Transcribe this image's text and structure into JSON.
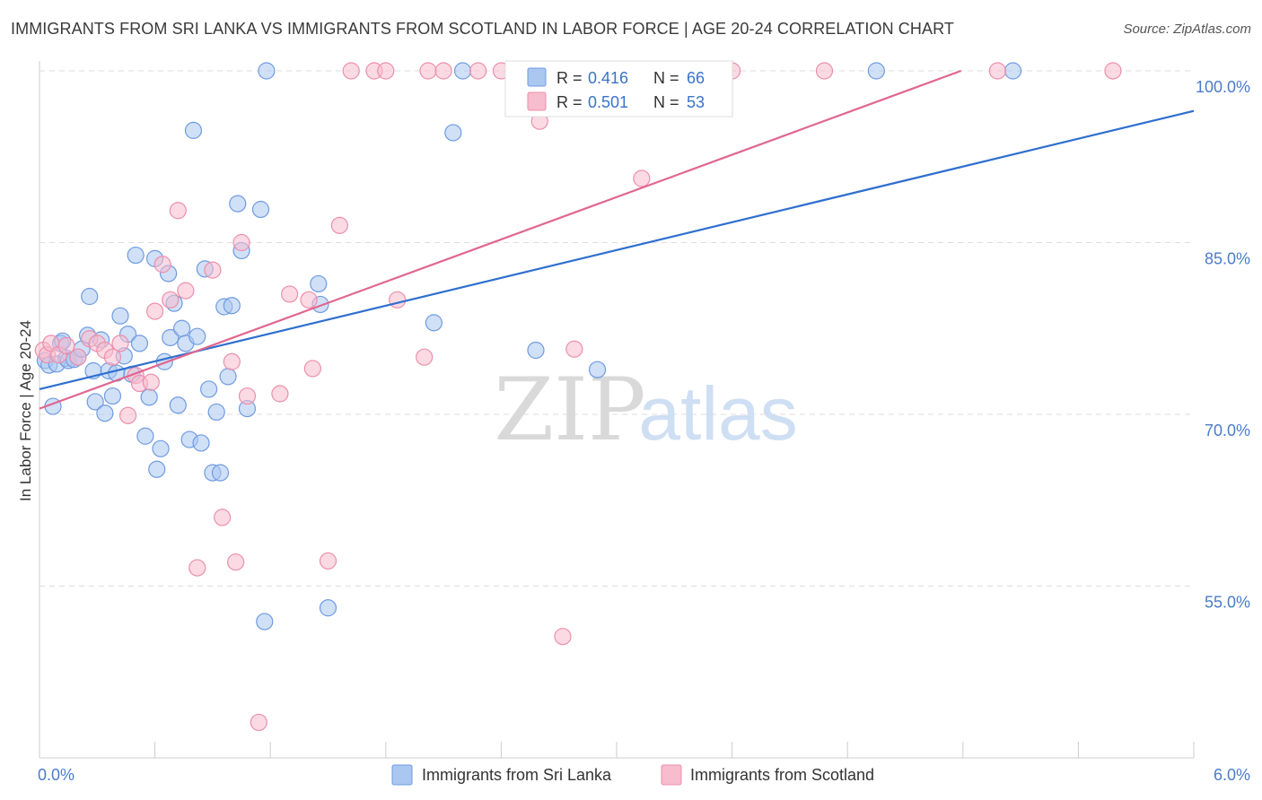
{
  "title": "IMMIGRANTS FROM SRI LANKA VS IMMIGRANTS FROM SCOTLAND IN LABOR FORCE | AGE 20-24 CORRELATION CHART",
  "source": "Source: ZipAtlas.com",
  "watermark": {
    "zip": "ZIP",
    "atlas": "atlas"
  },
  "colors": {
    "blue_fill": "#aac7f0",
    "blue_stroke": "#6f9be0",
    "blue_line": "#2f6fcf",
    "pink_fill": "#f7bccd",
    "pink_stroke": "#eb8fac",
    "pink_line": "#e0668f",
    "tick_color": "#4a7cc9",
    "grid": "#dddddd"
  },
  "chart_data": {
    "type": "scatter",
    "title": "IMMIGRANTS FROM SRI LANKA VS IMMIGRANTS FROM SCOTLAND IN LABOR FORCE | AGE 20-24 CORRELATION CHART",
    "xlabel": "",
    "ylabel": "In Labor Force | Age 20-24",
    "xlim": [
      0,
      6
    ],
    "ylim": [
      40,
      100
    ],
    "x_tick_labels": {
      "left": "0.0%",
      "right": "6.0%"
    },
    "y_ticks": [
      {
        "value": 100,
        "label": "100.0%"
      },
      {
        "value": 85,
        "label": "85.0%"
      },
      {
        "value": 70,
        "label": "70.0%"
      },
      {
        "value": 55,
        "label": "55.0%"
      }
    ],
    "grid": true,
    "legend_position": "top-center",
    "series": [
      {
        "name": "Immigrants from Sri Lanka",
        "color": "#aac7f0",
        "R": "0.416",
        "N": "66",
        "trend": {
          "x": [
            0.0,
            6.0
          ],
          "y": [
            72.2,
            96.5
          ]
        },
        "points": [
          [
            0.03,
            74.7
          ],
          [
            0.05,
            74.3
          ],
          [
            0.07,
            70.7
          ],
          [
            0.09,
            74.4
          ],
          [
            0.11,
            76.2
          ],
          [
            0.12,
            76.4
          ],
          [
            0.14,
            74.9
          ],
          [
            0.15,
            74.7
          ],
          [
            0.18,
            74.8
          ],
          [
            0.2,
            75.0
          ],
          [
            0.22,
            75.7
          ],
          [
            0.25,
            76.9
          ],
          [
            0.26,
            80.3
          ],
          [
            0.28,
            73.8
          ],
          [
            0.29,
            71.1
          ],
          [
            0.32,
            76.5
          ],
          [
            0.34,
            70.1
          ],
          [
            0.36,
            73.8
          ],
          [
            0.38,
            71.6
          ],
          [
            0.4,
            73.6
          ],
          [
            0.42,
            78.6
          ],
          [
            0.44,
            75.1
          ],
          [
            0.46,
            77.0
          ],
          [
            0.48,
            73.5
          ],
          [
            0.5,
            83.9
          ],
          [
            0.52,
            76.2
          ],
          [
            0.55,
            68.1
          ],
          [
            0.57,
            71.5
          ],
          [
            0.6,
            83.6
          ],
          [
            0.61,
            65.2
          ],
          [
            0.63,
            67.0
          ],
          [
            0.65,
            74.6
          ],
          [
            0.67,
            82.3
          ],
          [
            0.68,
            76.7
          ],
          [
            0.7,
            79.7
          ],
          [
            0.72,
            70.8
          ],
          [
            0.74,
            77.5
          ],
          [
            0.76,
            76.2
          ],
          [
            0.78,
            67.8
          ],
          [
            0.8,
            94.8
          ],
          [
            0.82,
            76.8
          ],
          [
            0.84,
            67.5
          ],
          [
            0.86,
            82.7
          ],
          [
            0.88,
            72.2
          ],
          [
            0.9,
            64.9
          ],
          [
            0.92,
            70.2
          ],
          [
            0.94,
            64.9
          ],
          [
            0.96,
            79.4
          ],
          [
            0.98,
            73.3
          ],
          [
            1.0,
            79.5
          ],
          [
            1.03,
            88.4
          ],
          [
            1.05,
            84.3
          ],
          [
            1.08,
            70.5
          ],
          [
            1.15,
            87.9
          ],
          [
            1.17,
            51.9
          ],
          [
            1.18,
            100.0
          ],
          [
            1.45,
            81.4
          ],
          [
            1.46,
            79.6
          ],
          [
            1.5,
            53.1
          ],
          [
            2.05,
            78.0
          ],
          [
            2.15,
            94.6
          ],
          [
            2.2,
            100.0
          ],
          [
            2.58,
            75.6
          ],
          [
            2.9,
            73.9
          ],
          [
            4.35,
            100.0
          ],
          [
            5.06,
            100.0
          ]
        ]
      },
      {
        "name": "Immigrants from Scotland",
        "color": "#f7bccd",
        "R": "0.501",
        "N": "53",
        "trend": {
          "x": [
            0.0,
            4.79
          ],
          "y": [
            70.5,
            100.0
          ]
        },
        "points": [
          [
            0.02,
            75.6
          ],
          [
            0.04,
            75.2
          ],
          [
            0.06,
            76.2
          ],
          [
            0.1,
            75.2
          ],
          [
            0.14,
            76.0
          ],
          [
            0.2,
            75.0
          ],
          [
            0.26,
            76.6
          ],
          [
            0.3,
            76.2
          ],
          [
            0.34,
            75.6
          ],
          [
            0.38,
            75.0
          ],
          [
            0.42,
            76.2
          ],
          [
            0.46,
            69.9
          ],
          [
            0.5,
            73.4
          ],
          [
            0.52,
            72.7
          ],
          [
            0.58,
            72.8
          ],
          [
            0.6,
            79.0
          ],
          [
            0.64,
            83.1
          ],
          [
            0.68,
            80.0
          ],
          [
            0.72,
            87.8
          ],
          [
            0.76,
            80.8
          ],
          [
            0.82,
            56.6
          ],
          [
            0.9,
            82.6
          ],
          [
            0.95,
            61.0
          ],
          [
            1.0,
            74.6
          ],
          [
            1.02,
            57.1
          ],
          [
            1.05,
            85.0
          ],
          [
            1.08,
            71.6
          ],
          [
            1.14,
            43.1
          ],
          [
            1.25,
            71.8
          ],
          [
            1.3,
            80.5
          ],
          [
            1.4,
            80.0
          ],
          [
            1.42,
            74.0
          ],
          [
            1.5,
            57.2
          ],
          [
            1.56,
            86.5
          ],
          [
            1.62,
            100.0
          ],
          [
            1.74,
            100.0
          ],
          [
            1.8,
            100.0
          ],
          [
            1.86,
            80.0
          ],
          [
            2.0,
            75.0
          ],
          [
            2.02,
            100.0
          ],
          [
            2.1,
            100.0
          ],
          [
            2.28,
            100.0
          ],
          [
            2.4,
            100.0
          ],
          [
            2.52,
            100.0
          ],
          [
            2.6,
            95.6
          ],
          [
            2.65,
            100.0
          ],
          [
            2.72,
            50.6
          ],
          [
            2.78,
            75.7
          ],
          [
            3.13,
            90.6
          ],
          [
            3.6,
            100.0
          ],
          [
            4.08,
            100.0
          ],
          [
            4.98,
            100.0
          ],
          [
            5.58,
            100.0
          ]
        ]
      }
    ]
  },
  "legend": {
    "r_label": "R =",
    "n_label": "N =",
    "items": [
      {
        "r_value": "0.416",
        "n_value": "66"
      },
      {
        "r_value": "0.501",
        "n_value": "53"
      }
    ]
  },
  "bottom_legend": [
    {
      "label": "Immigrants from Sri Lanka"
    },
    {
      "label": "Immigrants from Scotland"
    }
  ]
}
